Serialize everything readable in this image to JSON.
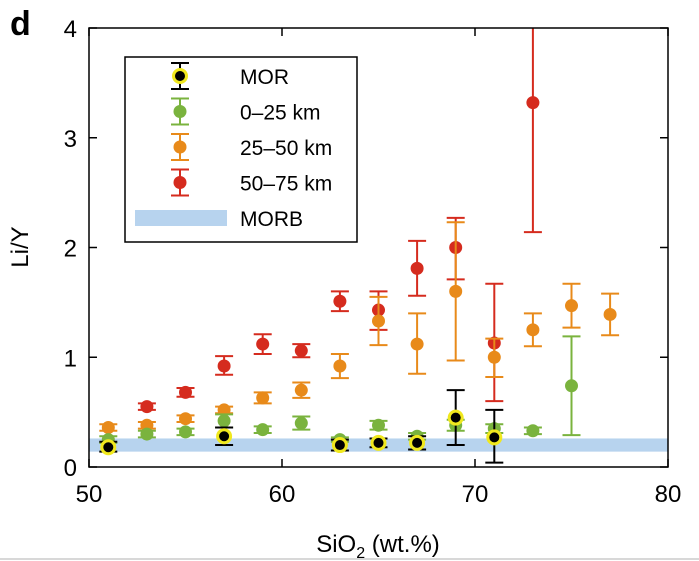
{
  "panel_label": "d",
  "chart_data": {
    "type": "scatter",
    "xlabel_main": "SiO",
    "xlabel_sub": "2",
    "xlabel_rest": " (wt.%)",
    "ylabel": "Li/Y",
    "xlim": [
      50,
      80
    ],
    "ylim": [
      0,
      4
    ],
    "xticks": [
      "50",
      "60",
      "70",
      "80"
    ],
    "yticks": [
      "0",
      "1",
      "2",
      "3",
      "4"
    ],
    "grid": false,
    "legend_position": "top-left",
    "band": {
      "name": "MORB",
      "y_low": 0.14,
      "y_high": 0.26,
      "color": "#b7d3ee"
    },
    "series": [
      {
        "name": "MOR",
        "color": "#000000",
        "marker_edge": "#f0e81e",
        "points": [
          {
            "x": 51,
            "y": 0.18,
            "lo": 0.14,
            "hi": 0.23
          },
          {
            "x": 57,
            "y": 0.28,
            "lo": 0.2,
            "hi": 0.36
          },
          {
            "x": 63,
            "y": 0.2,
            "lo": 0.15,
            "hi": 0.25
          },
          {
            "x": 65,
            "y": 0.22,
            "lo": 0.18,
            "hi": 0.26
          },
          {
            "x": 67,
            "y": 0.22,
            "lo": 0.16,
            "hi": 0.28
          },
          {
            "x": 69,
            "y": 0.45,
            "lo": 0.2,
            "hi": 0.7
          },
          {
            "x": 71,
            "y": 0.27,
            "lo": 0.04,
            "hi": 0.52
          }
        ]
      },
      {
        "name": "0–25 km",
        "color": "#7ab33e",
        "points": [
          {
            "x": 51,
            "y": 0.25,
            "lo": 0.22,
            "hi": 0.28
          },
          {
            "x": 53,
            "y": 0.3,
            "lo": 0.27,
            "hi": 0.33
          },
          {
            "x": 55,
            "y": 0.32,
            "lo": 0.29,
            "hi": 0.35
          },
          {
            "x": 57,
            "y": 0.42,
            "lo": 0.36,
            "hi": 0.48
          },
          {
            "x": 59,
            "y": 0.34,
            "lo": 0.31,
            "hi": 0.37
          },
          {
            "x": 61,
            "y": 0.4,
            "lo": 0.34,
            "hi": 0.46
          },
          {
            "x": 63,
            "y": 0.25,
            "lo": 0.23,
            "hi": 0.27
          },
          {
            "x": 65,
            "y": 0.38,
            "lo": 0.34,
            "hi": 0.42
          },
          {
            "x": 67,
            "y": 0.28,
            "lo": 0.25,
            "hi": 0.31
          },
          {
            "x": 69,
            "y": 0.38,
            "lo": 0.33,
            "hi": 0.43
          },
          {
            "x": 71,
            "y": 0.35,
            "lo": 0.31,
            "hi": 0.39
          },
          {
            "x": 73,
            "y": 0.33,
            "lo": 0.3,
            "hi": 0.36
          },
          {
            "x": 75,
            "y": 0.74,
            "lo": 0.29,
            "hi": 1.19
          }
        ]
      },
      {
        "name": "25–50 km",
        "color": "#e88a1a",
        "points": [
          {
            "x": 51,
            "y": 0.36,
            "lo": 0.33,
            "hi": 0.39
          },
          {
            "x": 53,
            "y": 0.38,
            "lo": 0.35,
            "hi": 0.41
          },
          {
            "x": 55,
            "y": 0.44,
            "lo": 0.41,
            "hi": 0.47
          },
          {
            "x": 57,
            "y": 0.52,
            "lo": 0.49,
            "hi": 0.55
          },
          {
            "x": 59,
            "y": 0.63,
            "lo": 0.58,
            "hi": 0.68
          },
          {
            "x": 61,
            "y": 0.7,
            "lo": 0.63,
            "hi": 0.77
          },
          {
            "x": 63,
            "y": 0.92,
            "lo": 0.81,
            "hi": 1.03
          },
          {
            "x": 65,
            "y": 1.33,
            "lo": 1.11,
            "hi": 1.55
          },
          {
            "x": 67,
            "y": 1.12,
            "lo": 0.85,
            "hi": 1.4
          },
          {
            "x": 69,
            "y": 1.6,
            "lo": 0.97,
            "hi": 2.23
          },
          {
            "x": 71,
            "y": 1.0,
            "lo": 0.82,
            "hi": 1.17
          },
          {
            "x": 73,
            "y": 1.25,
            "lo": 1.1,
            "hi": 1.4
          },
          {
            "x": 75,
            "y": 1.47,
            "lo": 1.27,
            "hi": 1.67
          },
          {
            "x": 77,
            "y": 1.39,
            "lo": 1.2,
            "hi": 1.58
          }
        ]
      },
      {
        "name": "50–75 km",
        "color": "#d52b1e",
        "points": [
          {
            "x": 53,
            "y": 0.55,
            "lo": 0.52,
            "hi": 0.58
          },
          {
            "x": 55,
            "y": 0.68,
            "lo": 0.64,
            "hi": 0.72
          },
          {
            "x": 57,
            "y": 0.92,
            "lo": 0.84,
            "hi": 1.01
          },
          {
            "x": 59,
            "y": 1.12,
            "lo": 1.03,
            "hi": 1.21
          },
          {
            "x": 61,
            "y": 1.06,
            "lo": 1.0,
            "hi": 1.12
          },
          {
            "x": 63,
            "y": 1.51,
            "lo": 1.42,
            "hi": 1.6
          },
          {
            "x": 65,
            "y": 1.43,
            "lo": 1.25,
            "hi": 1.6
          },
          {
            "x": 67,
            "y": 1.81,
            "lo": 1.56,
            "hi": 2.06
          },
          {
            "x": 69,
            "y": 2.0,
            "lo": 1.71,
            "hi": 2.27
          },
          {
            "x": 71,
            "y": 1.13,
            "lo": 0.6,
            "hi": 1.67
          },
          {
            "x": 73,
            "y": 3.32,
            "lo": 2.14,
            "hi": 4.5
          }
        ]
      }
    ],
    "legend_order": [
      "MOR",
      "0–25 km",
      "25–50 km",
      "50–75 km",
      "MORB"
    ]
  }
}
